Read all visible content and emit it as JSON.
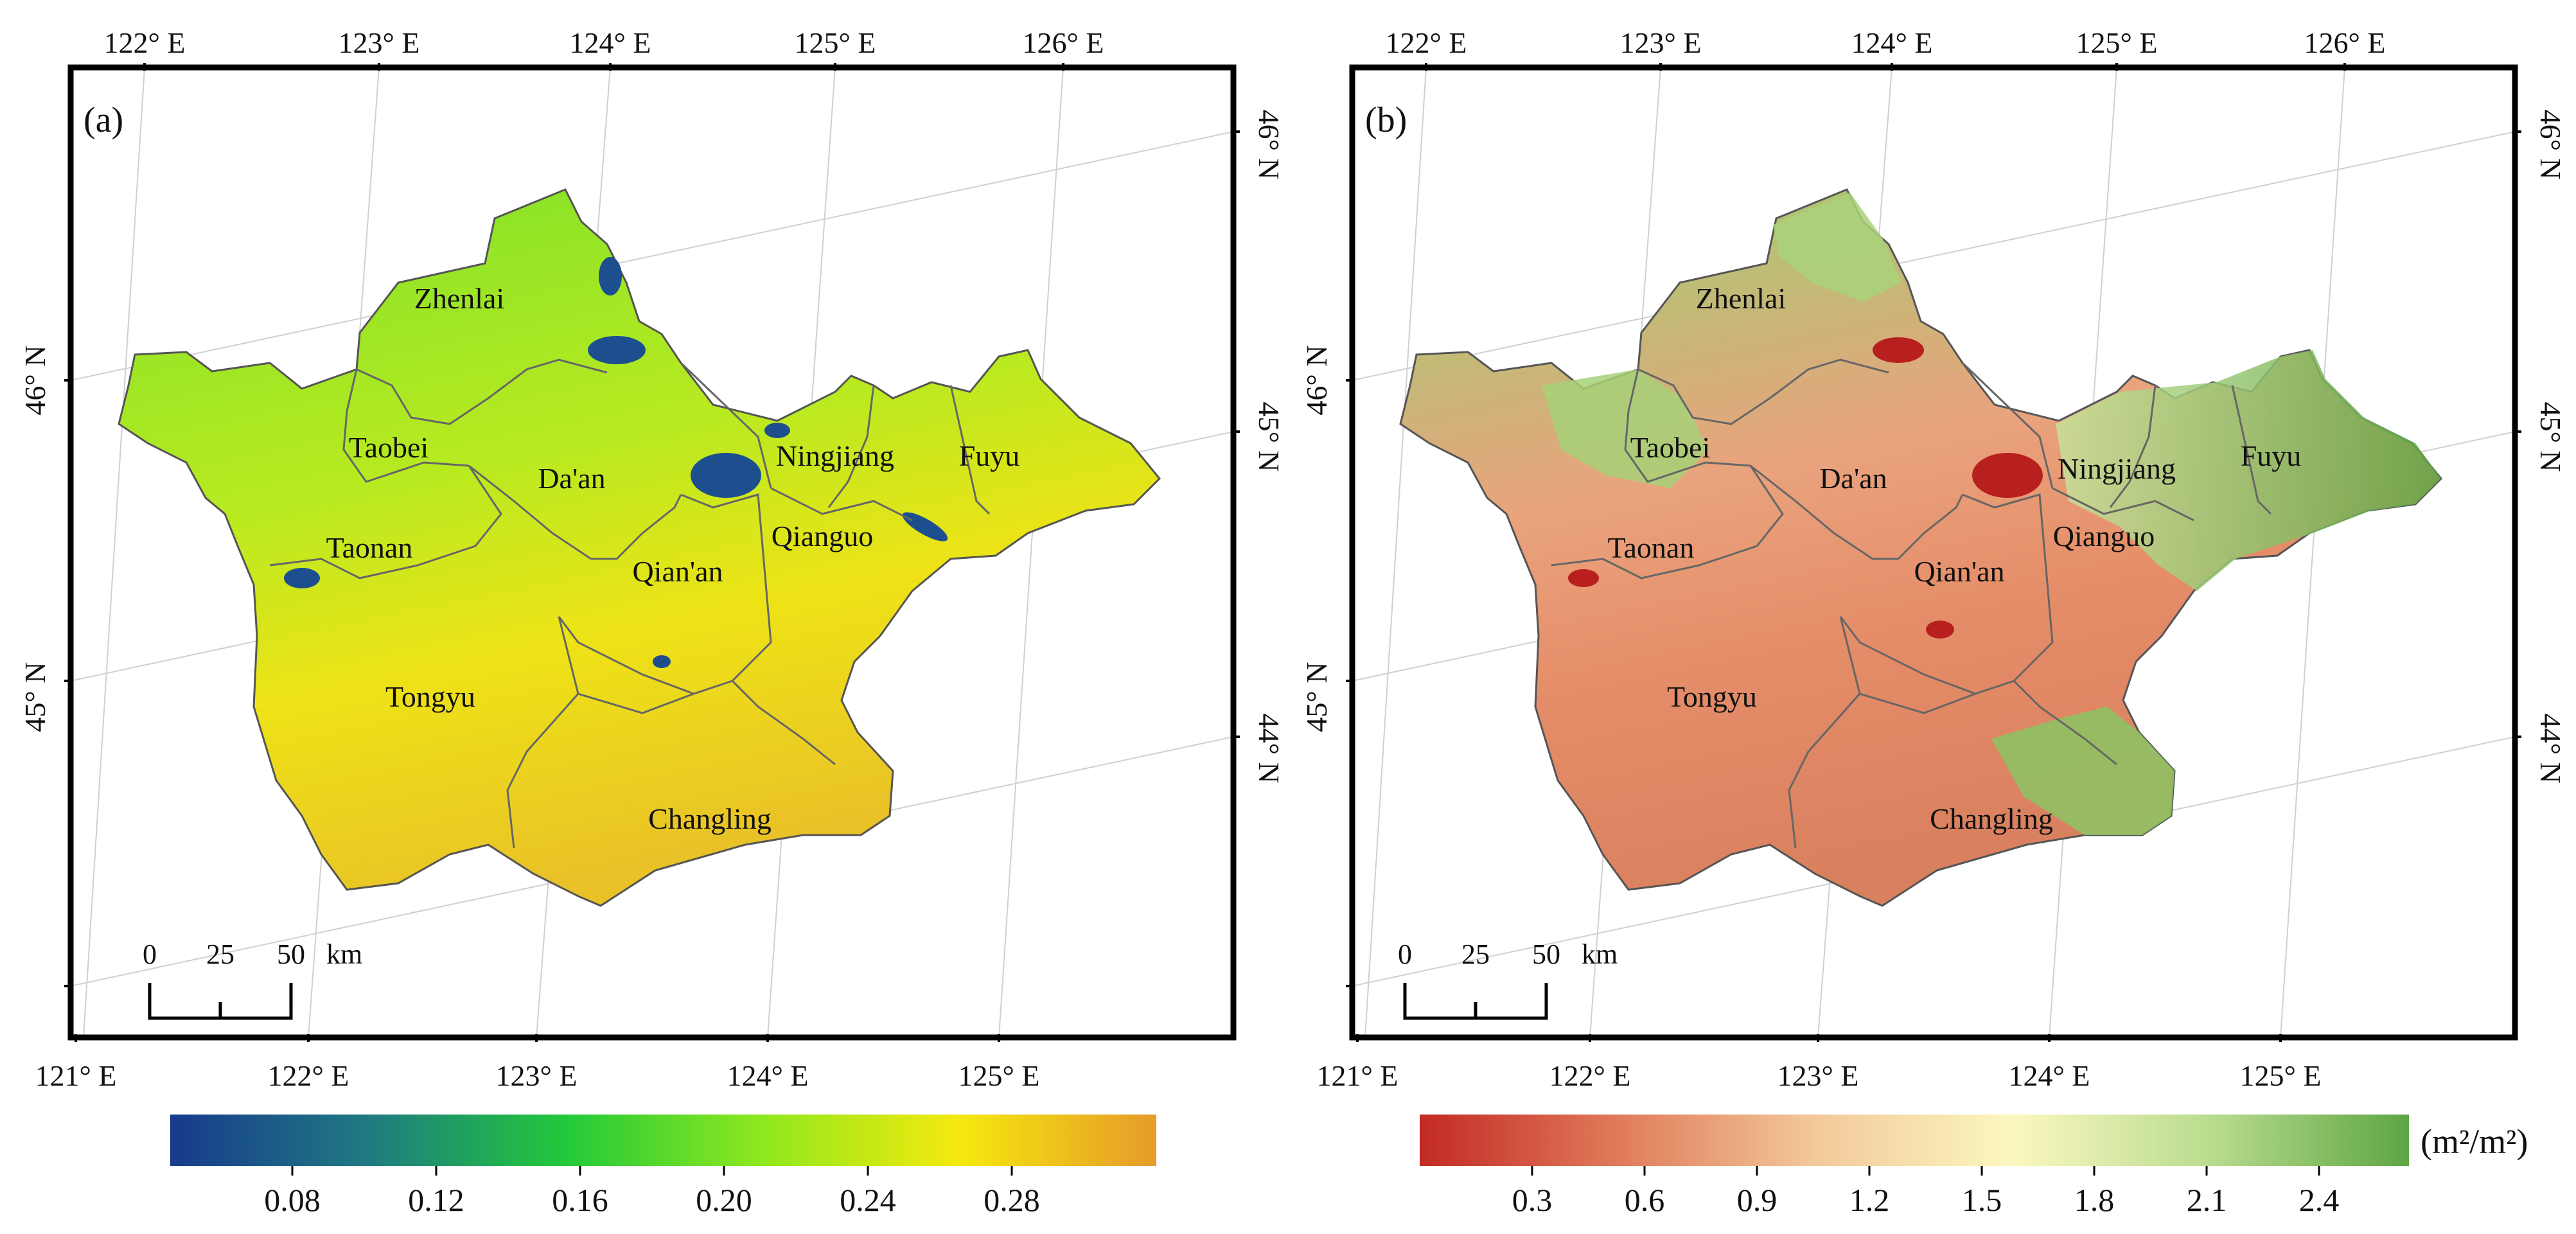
{
  "panels": [
    {
      "panel_label": "(a)",
      "top_lon_ticks": [
        "122° E",
        "123° E",
        "124° E",
        "125° E",
        "126° E"
      ],
      "bottom_lon_ticks": [
        "121° E",
        "122° E",
        "123° E",
        "124° E",
        "125° E"
      ],
      "left_lat_ticks": [
        "46° N",
        "45° N"
      ],
      "right_lat_ticks": [
        "46° N",
        "45° N",
        "44° N"
      ],
      "regions": [
        {
          "name": "Zhenlai"
        },
        {
          "name": "Taobei"
        },
        {
          "name": "Da'an"
        },
        {
          "name": "Ningjiang"
        },
        {
          "name": "Fuyu"
        },
        {
          "name": "Taonan"
        },
        {
          "name": "Qian'an"
        },
        {
          "name": "Qianguo"
        },
        {
          "name": "Tongyu"
        },
        {
          "name": "Changling"
        }
      ],
      "scalebar": {
        "ticks": [
          "0",
          "25",
          "50"
        ],
        "unit": "km"
      },
      "colorbar": {
        "ticks": [
          "0.08",
          "0.12",
          "0.16",
          "0.20",
          "0.24",
          "0.28"
        ],
        "unit": "",
        "colors": [
          "#183a8c",
          "#1f7a82",
          "#22c93a",
          "#8fe81e",
          "#f5e90e",
          "#e69a2a"
        ]
      }
    },
    {
      "panel_label": "(b)",
      "top_lon_ticks": [
        "122° E",
        "123° E",
        "124° E",
        "125° E",
        "126° E"
      ],
      "bottom_lon_ticks": [
        "121° E",
        "122° E",
        "123° E",
        "124° E",
        "125° E"
      ],
      "left_lat_ticks": [
        "46° N",
        "45° N"
      ],
      "right_lat_ticks": [
        "46° N",
        "45° N",
        "44° N"
      ],
      "regions": [
        {
          "name": "Zhenlai"
        },
        {
          "name": "Taobei"
        },
        {
          "name": "Da'an"
        },
        {
          "name": "Ningjiang"
        },
        {
          "name": "Fuyu"
        },
        {
          "name": "Taonan"
        },
        {
          "name": "Qian'an"
        },
        {
          "name": "Qianguo"
        },
        {
          "name": "Tongyu"
        },
        {
          "name": "Changling"
        }
      ],
      "scalebar": {
        "ticks": [
          "0",
          "25",
          "50"
        ],
        "unit": "km"
      },
      "colorbar": {
        "ticks": [
          "0.3",
          "0.6",
          "0.9",
          "1.2",
          "1.5",
          "1.8",
          "2.1",
          "2.4"
        ],
        "unit": "(m²/m²)",
        "colors": [
          "#c22a24",
          "#e07a5a",
          "#f3c99a",
          "#fbf7c0",
          "#b9dc8e",
          "#5ea545"
        ]
      }
    }
  ]
}
